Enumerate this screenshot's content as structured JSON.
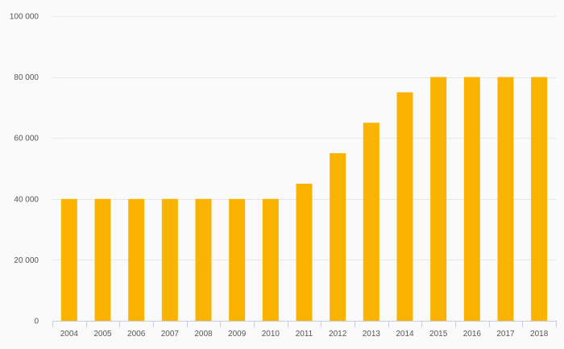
{
  "chart_data": {
    "type": "bar",
    "categories": [
      "2004",
      "2005",
      "2006",
      "2007",
      "2008",
      "2009",
      "2010",
      "2011",
      "2012",
      "2013",
      "2014",
      "2015",
      "2016",
      "2017",
      "2018"
    ],
    "values": [
      40000,
      40000,
      40000,
      40000,
      40000,
      40000,
      40000,
      45000,
      55000,
      65000,
      75000,
      80000,
      80000,
      80000,
      80000
    ],
    "title": "",
    "xlabel": "",
    "ylabel": "",
    "ylim": [
      0,
      100000
    ],
    "yticks": [
      0,
      20000,
      40000,
      60000,
      80000,
      100000
    ],
    "ytick_labels": [
      "0",
      "20 000",
      "40 000",
      "60 000",
      "80 000",
      "100 000"
    ],
    "grid": true,
    "legend": "none",
    "bar_color": "#f9b300",
    "grid_color": "#e6e6e6",
    "axis_color": "#c8cce0",
    "background": "#fafafa"
  }
}
